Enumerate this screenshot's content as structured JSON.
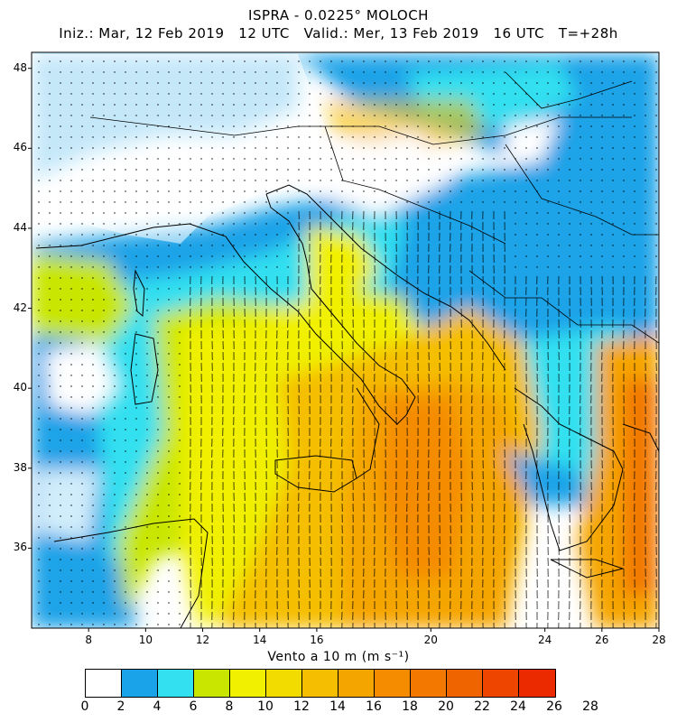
{
  "title": {
    "line1": "ISPRA - 0.0225° MOLOCH",
    "line2": "Iniz.: Mar, 12 Feb 2019   12 UTC   Valid.: Mer, 13 Feb 2019   16 UTC   T=+28h"
  },
  "axes": {
    "lat_ticks": [
      48,
      46,
      44,
      42,
      40,
      38,
      36
    ],
    "lon_ticks": [
      8,
      10,
      12,
      14,
      16,
      20,
      24,
      26,
      28
    ],
    "lat_range": [
      34,
      48.4
    ],
    "lon_range": [
      6,
      28
    ]
  },
  "colorbar": {
    "label": "Vento a 10 m (m s⁻¹)",
    "levels": [
      "0",
      "2",
      "4",
      "6",
      "8",
      "10",
      "12",
      "14",
      "16",
      "18",
      "20",
      "22",
      "24",
      "26",
      "28"
    ],
    "colors": [
      "#ffffff",
      "#1aa3e8",
      "#33e0f0",
      "#c8e600",
      "#f0f000",
      "#f2dc00",
      "#f5be00",
      "#f5a500",
      "#f58c00",
      "#f27800",
      "#f06400",
      "#ee4600",
      "#ec2a00"
    ]
  },
  "wind_field": {
    "description_colors": {
      "calm": "#ffffff",
      "light": "#1aa3e8",
      "moderate": "#33e0f0",
      "fresh": "#c8e600",
      "strong": "#f0f000",
      "orange": "#f5a500",
      "deep_orange": "#f27800"
    }
  }
}
